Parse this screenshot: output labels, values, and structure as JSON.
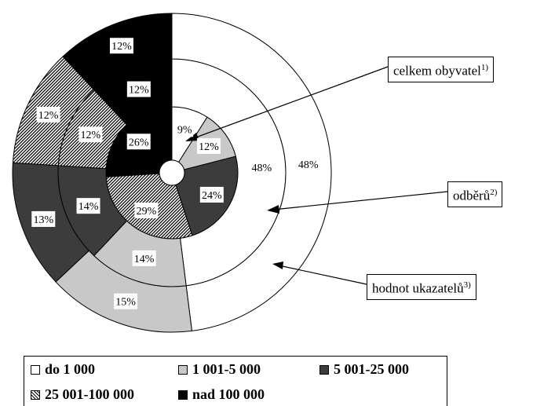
{
  "chart_data": {
    "type": "pie",
    "subtype": "concentric-donut",
    "categories": [
      "do 1 000",
      "1 001-5 000",
      "5 001-25 000",
      "25 001-100 000",
      "nad 100 000"
    ],
    "colors": [
      "#ffffff",
      "#c8c8c8",
      "#3c3c3c",
      "hatched",
      "#000000"
    ],
    "series": [
      {
        "name": "celkem obyvatel 1)",
        "values": [
          9,
          12,
          24,
          29,
          26
        ]
      },
      {
        "name": "odběrů 2)",
        "values": [
          48,
          14,
          14,
          12,
          12
        ]
      },
      {
        "name": "hodnot ukazatelů 3)",
        "values": [
          48,
          15,
          13,
          12,
          12
        ]
      }
    ],
    "legend_position": "bottom"
  },
  "callouts": {
    "inner": {
      "text": "celkem obyvatel",
      "sup": "1)"
    },
    "middle": {
      "text": "odběrů",
      "sup": "2)"
    },
    "outer": {
      "text": "hodnot ukazatelů",
      "sup": "3)"
    }
  },
  "legend": {
    "items": [
      {
        "label": "do 1 000"
      },
      {
        "label": "1 001-5 000"
      },
      {
        "label": "5 001-25 000"
      },
      {
        "label": "25 001-100 000"
      },
      {
        "label": "nad 100 000"
      }
    ]
  }
}
